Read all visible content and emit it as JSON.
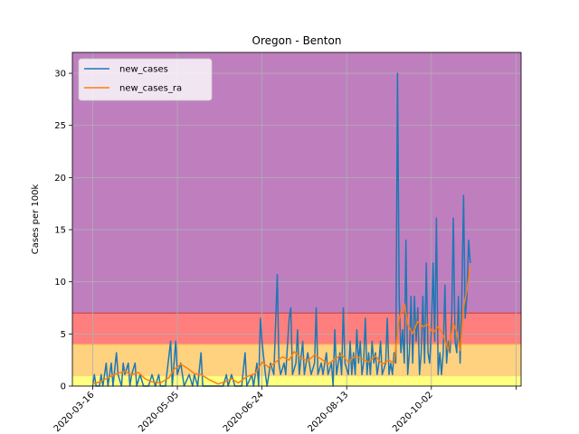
{
  "chart_data": {
    "type": "line",
    "title": "Oregon - Benton",
    "xlabel": "",
    "ylabel": "Cases per 100k",
    "x_ticks": [
      "2020-03-16",
      "2020-05-05",
      "2020-06-24",
      "2020-08-13",
      "2020-10-02",
      ""
    ],
    "y_ticks": [
      "0",
      "5",
      "10",
      "15",
      "20",
      "25",
      "30"
    ],
    "xlim": [
      "2020-03-04",
      "2020-11-24"
    ],
    "ylim": [
      0,
      32
    ],
    "grid": true,
    "legend_position": "top-left",
    "risk_bands": [
      {
        "from": 0,
        "to": 1,
        "color": "#ffff80"
      },
      {
        "from": 1,
        "to": 4,
        "color": "#ffd27f"
      },
      {
        "from": 4,
        "to": 7,
        "color": "#ff7f7f"
      },
      {
        "from": 7,
        "to": 32,
        "color": "#bf7fbf"
      }
    ],
    "band_lines": [
      {
        "y": 1,
        "color": "#ffd27f"
      },
      {
        "y": 4,
        "color": "#ffb54c"
      },
      {
        "y": 7,
        "color": "#d04a4a"
      }
    ],
    "series": [
      {
        "name": "new_cases",
        "color": "#1f77b4",
        "points": [
          [
            "2020-03-16",
            0
          ],
          [
            "2020-03-17",
            1.1
          ],
          [
            "2020-03-18",
            0
          ],
          [
            "2020-03-20",
            0
          ],
          [
            "2020-03-21",
            1.1
          ],
          [
            "2020-03-22",
            0
          ],
          [
            "2020-03-24",
            2.2
          ],
          [
            "2020-03-25",
            0
          ],
          [
            "2020-03-27",
            2.2
          ],
          [
            "2020-03-28",
            0
          ],
          [
            "2020-03-30",
            3.2
          ],
          [
            "2020-03-31",
            1.1
          ],
          [
            "2020-04-02",
            0
          ],
          [
            "2020-04-03",
            2.2
          ],
          [
            "2020-04-04",
            1.1
          ],
          [
            "2020-04-06",
            2.2
          ],
          [
            "2020-04-07",
            0
          ],
          [
            "2020-04-08",
            1.1
          ],
          [
            "2020-04-10",
            2.2
          ],
          [
            "2020-04-11",
            0
          ],
          [
            "2020-04-13",
            1.1
          ],
          [
            "2020-04-15",
            0
          ],
          [
            "2020-04-18",
            0
          ],
          [
            "2020-04-20",
            1.1
          ],
          [
            "2020-04-22",
            0
          ],
          [
            "2020-04-24",
            1.1
          ],
          [
            "2020-04-25",
            0
          ],
          [
            "2020-04-28",
            0
          ],
          [
            "2020-05-01",
            4.3
          ],
          [
            "2020-05-02",
            0
          ],
          [
            "2020-05-04",
            4.3
          ],
          [
            "2020-05-05",
            1.1
          ],
          [
            "2020-05-07",
            2.2
          ],
          [
            "2020-05-09",
            0
          ],
          [
            "2020-05-12",
            1.1
          ],
          [
            "2020-05-14",
            0
          ],
          [
            "2020-05-15",
            1.1
          ],
          [
            "2020-05-17",
            0
          ],
          [
            "2020-05-19",
            3.2
          ],
          [
            "2020-05-20",
            0
          ],
          [
            "2020-05-25",
            0
          ],
          [
            "2020-05-28",
            0
          ],
          [
            "2020-06-01",
            0
          ],
          [
            "2020-06-03",
            1.1
          ],
          [
            "2020-06-04",
            0
          ],
          [
            "2020-06-06",
            1.1
          ],
          [
            "2020-06-08",
            0
          ],
          [
            "2020-06-12",
            0
          ],
          [
            "2020-06-14",
            3.2
          ],
          [
            "2020-06-15",
            0
          ],
          [
            "2020-06-18",
            1.1
          ],
          [
            "2020-06-19",
            0
          ],
          [
            "2020-06-21",
            2.2
          ],
          [
            "2020-06-22",
            0
          ],
          [
            "2020-06-23",
            6.5
          ],
          [
            "2020-06-24",
            4.3
          ],
          [
            "2020-06-26",
            1.1
          ],
          [
            "2020-06-27",
            0
          ],
          [
            "2020-06-29",
            2.2
          ],
          [
            "2020-07-01",
            1.1
          ],
          [
            "2020-07-03",
            10.7
          ],
          [
            "2020-07-04",
            2.2
          ],
          [
            "2020-07-05",
            1.1
          ],
          [
            "2020-07-07",
            2.2
          ],
          [
            "2020-07-08",
            1.1
          ],
          [
            "2020-07-10",
            6.5
          ],
          [
            "2020-07-11",
            7.5
          ],
          [
            "2020-07-12",
            1.1
          ],
          [
            "2020-07-14",
            2.2
          ],
          [
            "2020-07-15",
            5.4
          ],
          [
            "2020-07-16",
            1.1
          ],
          [
            "2020-07-18",
            4.3
          ],
          [
            "2020-07-19",
            1.1
          ],
          [
            "2020-07-21",
            3.2
          ],
          [
            "2020-07-23",
            1.1
          ],
          [
            "2020-07-25",
            2.2
          ],
          [
            "2020-07-26",
            7.5
          ],
          [
            "2020-07-27",
            1.1
          ],
          [
            "2020-07-29",
            2.2
          ],
          [
            "2020-07-30",
            1.1
          ],
          [
            "2020-08-01",
            3.2
          ],
          [
            "2020-08-02",
            1.1
          ],
          [
            "2020-08-04",
            2.2
          ],
          [
            "2020-08-05",
            0
          ],
          [
            "2020-08-06",
            5.4
          ],
          [
            "2020-08-07",
            1.1
          ],
          [
            "2020-08-09",
            3.2
          ],
          [
            "2020-08-10",
            1.1
          ],
          [
            "2020-08-11",
            7.5
          ],
          [
            "2020-08-12",
            2.2
          ],
          [
            "2020-08-14",
            1.1
          ],
          [
            "2020-08-15",
            4.3
          ],
          [
            "2020-08-16",
            1.1
          ],
          [
            "2020-08-17",
            3.2
          ],
          [
            "2020-08-18",
            1.1
          ],
          [
            "2020-08-19",
            5.4
          ],
          [
            "2020-08-20",
            2.2
          ],
          [
            "2020-08-21",
            4.3
          ],
          [
            "2020-08-22",
            1.1
          ],
          [
            "2020-08-23",
            2.2
          ],
          [
            "2020-08-24",
            6.5
          ],
          [
            "2020-08-25",
            1.1
          ],
          [
            "2020-08-26",
            3.2
          ],
          [
            "2020-08-27",
            1.1
          ],
          [
            "2020-08-28",
            4.3
          ],
          [
            "2020-08-29",
            2.2
          ],
          [
            "2020-08-30",
            3.2
          ],
          [
            "2020-08-31",
            1.1
          ],
          [
            "2020-09-01",
            2.2
          ],
          [
            "2020-09-02",
            4.3
          ],
          [
            "2020-09-03",
            1.1
          ],
          [
            "2020-09-05",
            2.2
          ],
          [
            "2020-09-06",
            6.5
          ],
          [
            "2020-09-07",
            1.1
          ],
          [
            "2020-09-08",
            2.2
          ],
          [
            "2020-09-09",
            1.1
          ],
          [
            "2020-09-10",
            3.2
          ],
          [
            "2020-09-11",
            2.2
          ],
          [
            "2020-09-12",
            30.0
          ],
          [
            "2020-09-13",
            8.6
          ],
          [
            "2020-09-14",
            3.2
          ],
          [
            "2020-09-15",
            5.4
          ],
          [
            "2020-09-16",
            2.2
          ],
          [
            "2020-09-17",
            14.0
          ],
          [
            "2020-09-18",
            1.1
          ],
          [
            "2020-09-19",
            3.2
          ],
          [
            "2020-09-20",
            8.6
          ],
          [
            "2020-09-21",
            2.2
          ],
          [
            "2020-09-22",
            8.6
          ],
          [
            "2020-09-23",
            4.3
          ],
          [
            "2020-09-24",
            7.5
          ],
          [
            "2020-09-25",
            1.1
          ],
          [
            "2020-09-26",
            3.2
          ],
          [
            "2020-09-27",
            8.6
          ],
          [
            "2020-09-28",
            2.2
          ],
          [
            "2020-09-29",
            11.8
          ],
          [
            "2020-09-30",
            3.2
          ],
          [
            "2020-10-01",
            2.2
          ],
          [
            "2020-10-02",
            5.4
          ],
          [
            "2020-10-03",
            11.8
          ],
          [
            "2020-10-04",
            4.3
          ],
          [
            "2020-10-05",
            16.1
          ],
          [
            "2020-10-06",
            1.1
          ],
          [
            "2020-10-07",
            3.2
          ],
          [
            "2020-10-08",
            1.1
          ],
          [
            "2020-10-09",
            3.2
          ],
          [
            "2020-10-10",
            9.7
          ],
          [
            "2020-10-11",
            2.2
          ],
          [
            "2020-10-12",
            4.3
          ],
          [
            "2020-10-13",
            3.2
          ],
          [
            "2020-10-14",
            6.5
          ],
          [
            "2020-10-15",
            16.1
          ],
          [
            "2020-10-16",
            4.3
          ],
          [
            "2020-10-17",
            3.2
          ],
          [
            "2020-10-18",
            8.6
          ],
          [
            "2020-10-19",
            2.2
          ],
          [
            "2020-10-20",
            8.6
          ],
          [
            "2020-10-21",
            18.3
          ],
          [
            "2020-10-22",
            6.5
          ],
          [
            "2020-10-23",
            8.6
          ],
          [
            "2020-10-24",
            14.0
          ],
          [
            "2020-10-25",
            11.8
          ]
        ]
      },
      {
        "name": "new_cases_ra",
        "color": "#ff7f0e",
        "points": [
          [
            "2020-03-16",
            0.2
          ],
          [
            "2020-03-20",
            0.4
          ],
          [
            "2020-03-25",
            0.8
          ],
          [
            "2020-03-30",
            1.2
          ],
          [
            "2020-04-04",
            1.4
          ],
          [
            "2020-04-08",
            1.1
          ],
          [
            "2020-04-12",
            1.3
          ],
          [
            "2020-04-16",
            0.7
          ],
          [
            "2020-04-20",
            0.4
          ],
          [
            "2020-04-25",
            0.3
          ],
          [
            "2020-04-30",
            0.8
          ],
          [
            "2020-05-03",
            1.6
          ],
          [
            "2020-05-07",
            2.1
          ],
          [
            "2020-05-11",
            1.7
          ],
          [
            "2020-05-15",
            1.2
          ],
          [
            "2020-05-19",
            1.1
          ],
          [
            "2020-05-24",
            0.6
          ],
          [
            "2020-05-29",
            0.2
          ],
          [
            "2020-06-02",
            0.4
          ],
          [
            "2020-06-06",
            0.7
          ],
          [
            "2020-06-10",
            0.3
          ],
          [
            "2020-06-15",
            0.9
          ],
          [
            "2020-06-20",
            1.2
          ],
          [
            "2020-06-24",
            2.3
          ],
          [
            "2020-06-28",
            1.8
          ],
          [
            "2020-07-02",
            2.3
          ],
          [
            "2020-07-06",
            2.8
          ],
          [
            "2020-07-10",
            2.5
          ],
          [
            "2020-07-13",
            3.3
          ],
          [
            "2020-07-17",
            2.7
          ],
          [
            "2020-07-21",
            2.4
          ],
          [
            "2020-07-25",
            3.0
          ],
          [
            "2020-07-29",
            2.6
          ],
          [
            "2020-08-02",
            2.1
          ],
          [
            "2020-08-06",
            2.6
          ],
          [
            "2020-08-10",
            3.0
          ],
          [
            "2020-08-14",
            2.3
          ],
          [
            "2020-08-18",
            2.9
          ],
          [
            "2020-08-22",
            2.6
          ],
          [
            "2020-08-26",
            2.3
          ],
          [
            "2020-08-30",
            2.9
          ],
          [
            "2020-09-03",
            2.1
          ],
          [
            "2020-09-07",
            2.5
          ],
          [
            "2020-09-10",
            2.2
          ],
          [
            "2020-09-13",
            6.5
          ],
          [
            "2020-09-16",
            7.9
          ],
          [
            "2020-09-18",
            5.9
          ],
          [
            "2020-09-21",
            5.0
          ],
          [
            "2020-09-24",
            6.2
          ],
          [
            "2020-09-27",
            5.7
          ],
          [
            "2020-09-30",
            5.9
          ],
          [
            "2020-10-03",
            5.1
          ],
          [
            "2020-10-06",
            5.7
          ],
          [
            "2020-10-09",
            4.9
          ],
          [
            "2020-10-12",
            3.4
          ],
          [
            "2020-10-15",
            6.0
          ],
          [
            "2020-10-17",
            5.2
          ],
          [
            "2020-10-19",
            3.4
          ],
          [
            "2020-10-21",
            7.5
          ],
          [
            "2020-10-23",
            9.2
          ],
          [
            "2020-10-25",
            11.5
          ]
        ]
      }
    ]
  }
}
